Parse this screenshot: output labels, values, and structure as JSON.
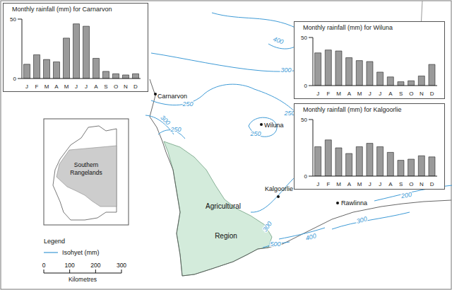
{
  "chart_data": [
    {
      "type": "bar",
      "title": "Monthly rainfall (mm) for Carnarvon",
      "categories": [
        "J",
        "F",
        "M",
        "A",
        "M",
        "J",
        "J",
        "A",
        "S",
        "O",
        "N",
        "D"
      ],
      "values": [
        12,
        20,
        16,
        14,
        34,
        46,
        44,
        17,
        6,
        4,
        3,
        4
      ],
      "color": "#9a9a9a",
      "ylim": [
        0,
        50
      ],
      "yticks": [
        0,
        50
      ]
    },
    {
      "type": "bar",
      "title": "Monthly rainfall (mm) for Wiluna",
      "categories": [
        "J",
        "F",
        "M",
        "A",
        "M",
        "J",
        "J",
        "A",
        "S",
        "O",
        "N",
        "D"
      ],
      "values": [
        34,
        37,
        36,
        29,
        26,
        25,
        14,
        9,
        4,
        5,
        10,
        22
      ],
      "color": "#9a9a9a",
      "ylim": [
        0,
        50
      ],
      "yticks": [
        0,
        50
      ]
    },
    {
      "type": "bar",
      "title": "Monthly rainfall (mm) for Kalgoorlie",
      "categories": [
        "J",
        "F",
        "M",
        "A",
        "M",
        "J",
        "J",
        "A",
        "S",
        "O",
        "N",
        "D"
      ],
      "values": [
        26,
        32,
        25,
        20,
        26,
        29,
        26,
        21,
        14,
        15,
        18,
        17
      ],
      "color": "#9a9a9a",
      "ylim": [
        0,
        50
      ],
      "yticks": [
        0,
        50
      ]
    }
  ],
  "map": {
    "places": [
      "Carnarvon",
      "Wiluna",
      "Kalgoorlie",
      "Rawlinna"
    ],
    "regions": [
      "Agricultural Region",
      "Southern Rangelands"
    ],
    "isohyets": [
      400,
      300,
      250,
      250,
      250,
      300,
      250,
      200,
      300,
      300,
      400,
      500
    ],
    "legend": {
      "title": "Legend",
      "items": [
        "Isohyet (mm)"
      ]
    },
    "scale": {
      "ticks": [
        0,
        100,
        200,
        300
      ],
      "label": "Kilometres"
    }
  }
}
